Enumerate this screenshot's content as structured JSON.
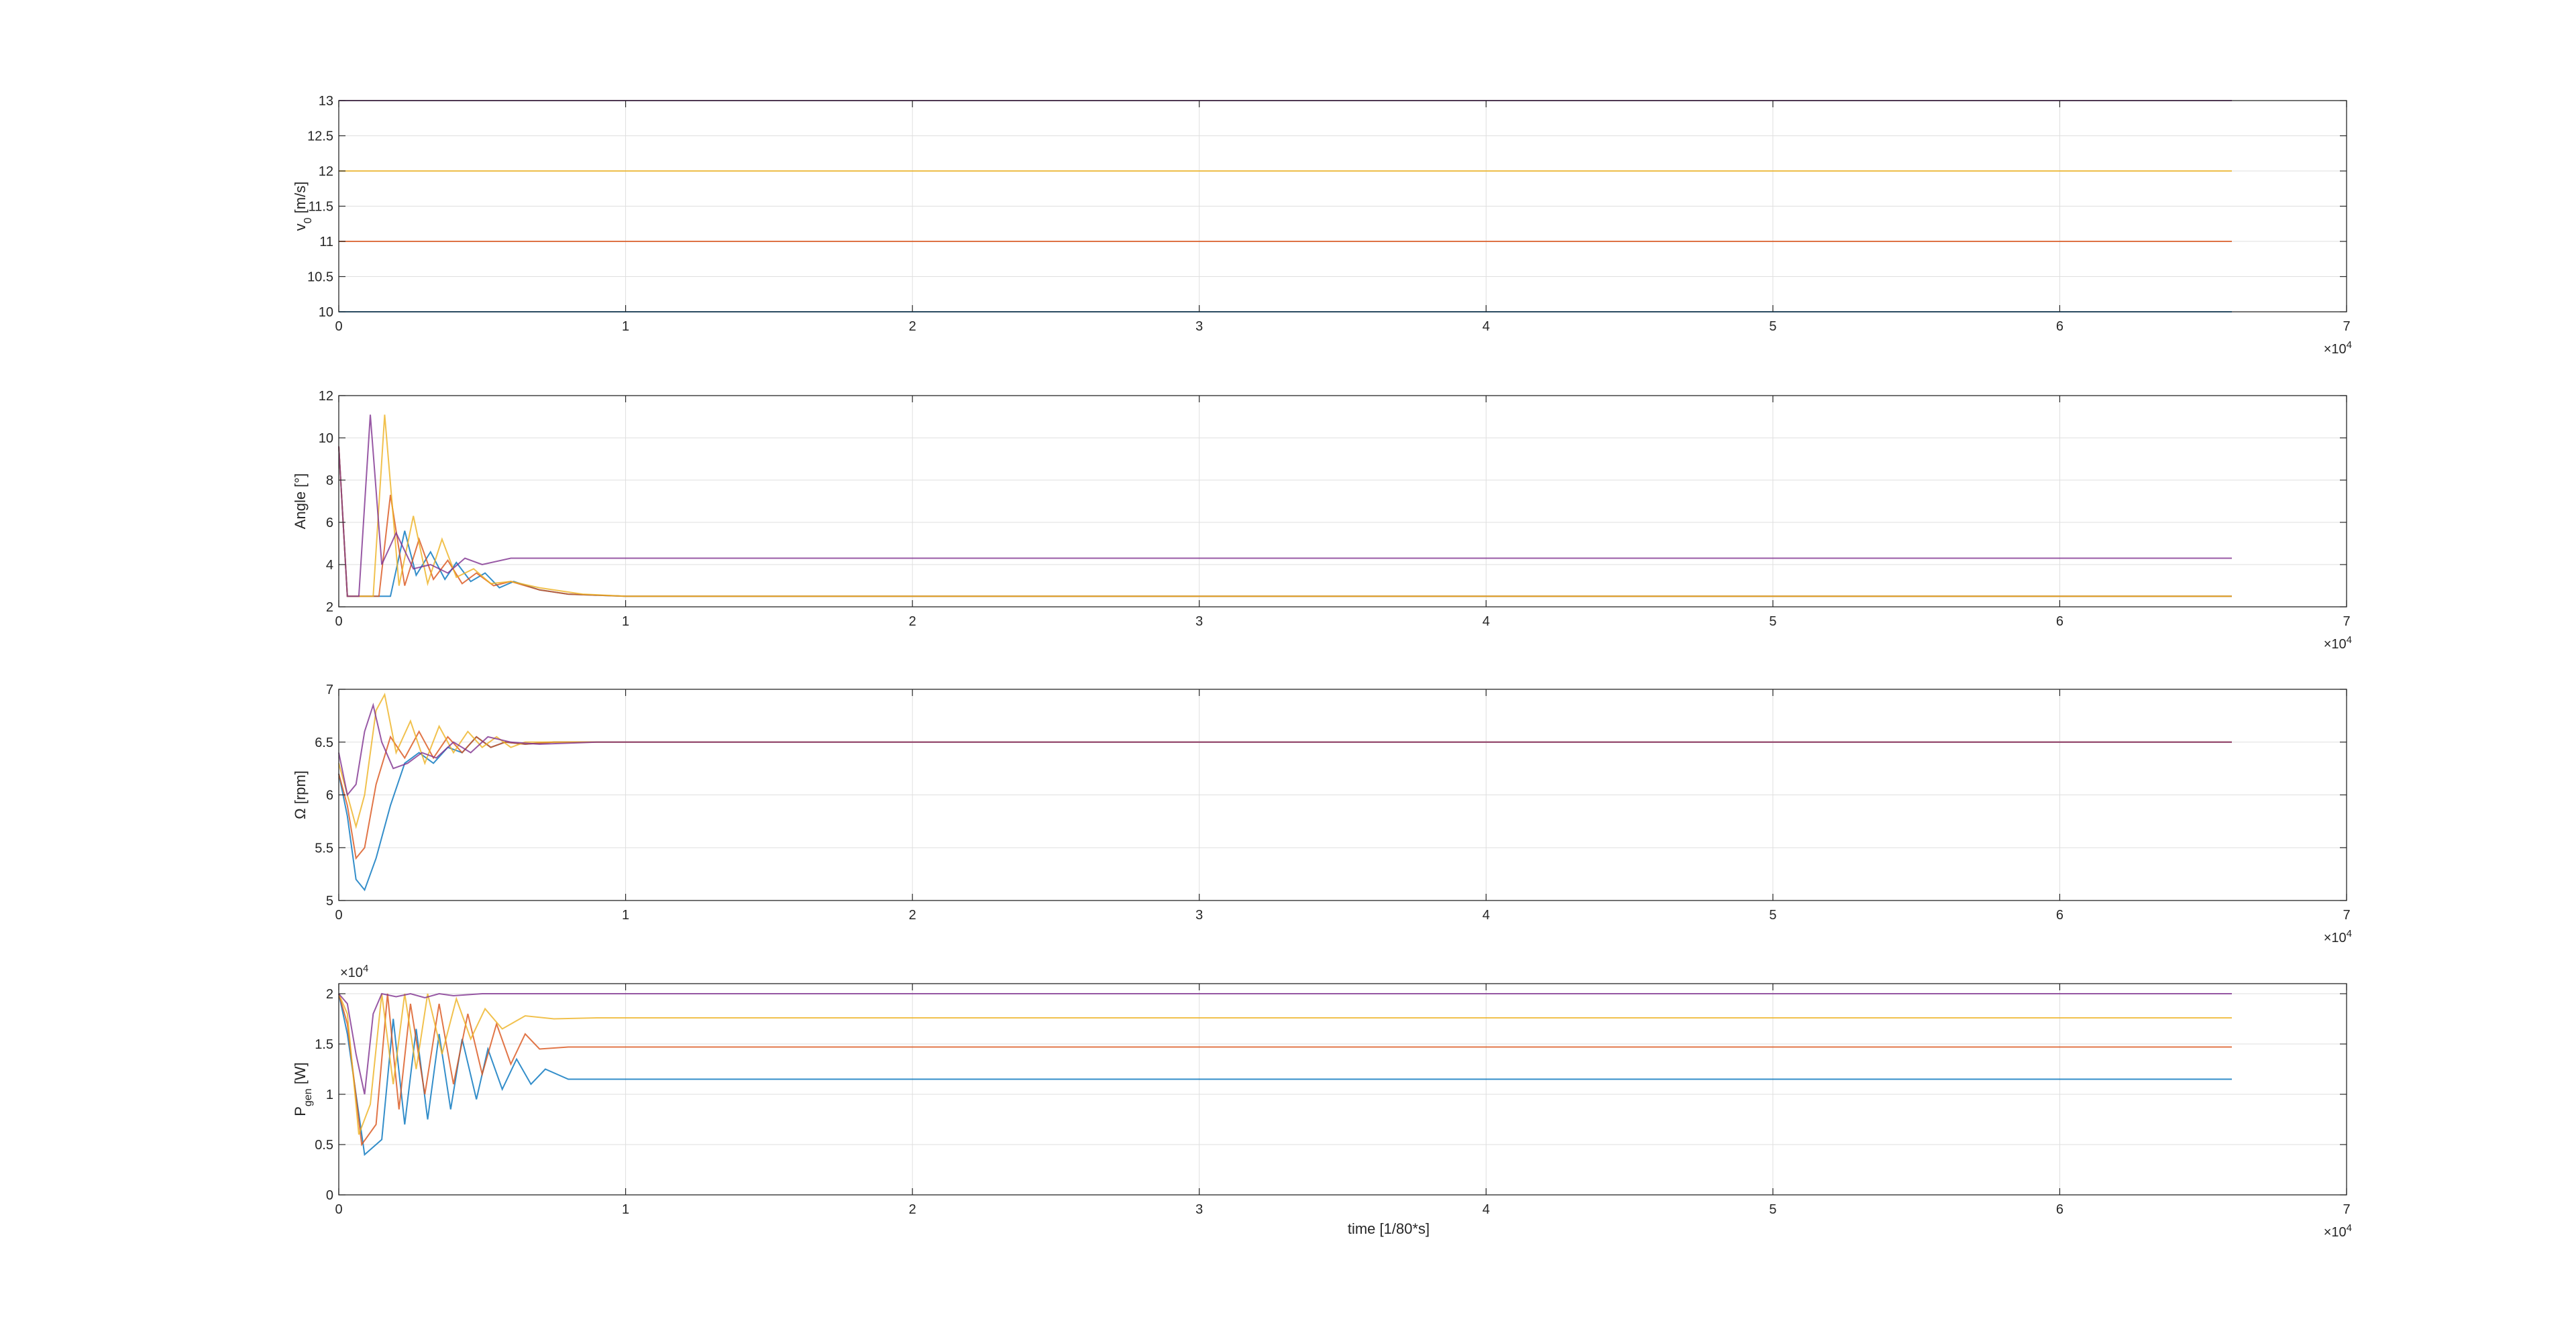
{
  "figure": {
    "xlabel": "time [1/80*s]"
  },
  "colors": {
    "s1": "#0072BD",
    "s2": "#D95319",
    "s3": "#EDB120",
    "s4": "#7E2F8E",
    "axis": "#262626",
    "grid": "#dfdfdf"
  },
  "chart_data": [
    {
      "type": "line",
      "ylabel": "v_0 [m/s]",
      "xlim": [
        0,
        70000
      ],
      "ylim": [
        10,
        13
      ],
      "xticks": [
        0,
        1,
        2,
        3,
        4,
        5,
        6,
        7
      ],
      "x_exponent": "4",
      "yticks": [
        "10",
        "10.5",
        "11",
        "11.5",
        "12",
        "12.5",
        "13"
      ],
      "grid": true,
      "series": [
        {
          "color": "#0072BD",
          "x": [
            0,
            66000
          ],
          "y": [
            10,
            10
          ]
        },
        {
          "color": "#D95319",
          "x": [
            0,
            66000
          ],
          "y": [
            11,
            11
          ]
        },
        {
          "color": "#EDB120",
          "x": [
            0,
            66000
          ],
          "y": [
            12,
            12
          ]
        },
        {
          "color": "#7E2F8E",
          "x": [
            0,
            66000
          ],
          "y": [
            13,
            13
          ]
        }
      ]
    },
    {
      "type": "line",
      "ylabel": "Angle [°]",
      "xlim": [
        0,
        70000
      ],
      "ylim": [
        2,
        12
      ],
      "xticks": [
        0,
        1,
        2,
        3,
        4,
        5,
        6,
        7
      ],
      "x_exponent": "4",
      "yticks": [
        "2",
        "4",
        "6",
        "8",
        "10",
        "12"
      ],
      "grid": true,
      "series": [
        {
          "color": "#0072BD",
          "x": [
            0,
            300,
            700,
            1200,
            1800,
            2300,
            2700,
            3200,
            3700,
            4100,
            4600,
            5100,
            5600,
            6100,
            7000,
            8000,
            10000,
            66000
          ],
          "y": [
            9.6,
            2.5,
            2.5,
            2.5,
            2.5,
            5.6,
            3.5,
            4.6,
            3.3,
            4.1,
            3.2,
            3.6,
            2.9,
            3.2,
            2.8,
            2.6,
            2.5,
            2.5
          ]
        },
        {
          "color": "#D95319",
          "x": [
            0,
            300,
            900,
            1400,
            1800,
            2300,
            2800,
            3300,
            3800,
            4300,
            4800,
            5400,
            6000,
            7000,
            8000,
            10000,
            66000
          ],
          "y": [
            9.6,
            2.5,
            2.5,
            2.5,
            7.3,
            3.0,
            5.2,
            3.3,
            4.2,
            3.1,
            3.6,
            3.0,
            3.2,
            2.8,
            2.6,
            2.5,
            2.5
          ]
        },
        {
          "color": "#EDB120",
          "x": [
            0,
            300,
            800,
            1200,
            1600,
            2100,
            2600,
            3100,
            3600,
            4100,
            4700,
            5300,
            6000,
            7000,
            8500,
            10000,
            66000
          ],
          "y": [
            9.6,
            2.5,
            2.5,
            2.5,
            11.1,
            3.0,
            6.3,
            3.1,
            5.2,
            3.4,
            3.8,
            3.1,
            3.2,
            2.9,
            2.6,
            2.5,
            2.5
          ]
        },
        {
          "color": "#7E2F8E",
          "x": [
            0,
            300,
            700,
            1100,
            1500,
            2000,
            2600,
            3200,
            3800,
            4400,
            5000,
            6000,
            66000
          ],
          "y": [
            9.6,
            2.5,
            2.5,
            11.1,
            4.0,
            5.5,
            3.8,
            4.0,
            3.6,
            4.3,
            4.0,
            4.3,
            4.3
          ]
        }
      ]
    },
    {
      "type": "line",
      "ylabel": "Ω [rpm]",
      "xlim": [
        0,
        70000
      ],
      "ylim": [
        5,
        7
      ],
      "xticks": [
        0,
        1,
        2,
        3,
        4,
        5,
        6,
        7
      ],
      "x_exponent": "4",
      "yticks": [
        "5",
        "5.5",
        "6",
        "6.5",
        "7"
      ],
      "grid": true,
      "series": [
        {
          "color": "#0072BD",
          "x": [
            0,
            300,
            600,
            900,
            1300,
            1800,
            2300,
            2800,
            3300,
            3800,
            4300,
            4800,
            5300,
            5800,
            6500,
            7500,
            9000,
            66000
          ],
          "y": [
            6.2,
            5.8,
            5.2,
            5.1,
            5.4,
            5.9,
            6.3,
            6.4,
            6.3,
            6.45,
            6.4,
            6.55,
            6.45,
            6.5,
            6.48,
            6.5,
            6.5,
            6.5
          ]
        },
        {
          "color": "#D95319",
          "x": [
            0,
            300,
            600,
            900,
            1300,
            1800,
            2300,
            2800,
            3300,
            3800,
            4300,
            4800,
            5300,
            5800,
            6500,
            7500,
            9000,
            66000
          ],
          "y": [
            6.2,
            5.9,
            5.4,
            5.5,
            6.1,
            6.55,
            6.35,
            6.6,
            6.35,
            6.55,
            6.4,
            6.55,
            6.45,
            6.5,
            6.48,
            6.5,
            6.5,
            6.5
          ]
        },
        {
          "color": "#EDB120",
          "x": [
            0,
            300,
            600,
            900,
            1300,
            1600,
            2000,
            2500,
            3000,
            3500,
            4000,
            4500,
            5000,
            5500,
            6000,
            6500,
            7500,
            9000,
            66000
          ],
          "y": [
            6.3,
            6.0,
            5.7,
            6.0,
            6.8,
            6.95,
            6.4,
            6.7,
            6.3,
            6.65,
            6.4,
            6.6,
            6.45,
            6.55,
            6.45,
            6.5,
            6.5,
            6.5,
            6.5
          ]
        },
        {
          "color": "#7E2F8E",
          "x": [
            0,
            300,
            600,
            900,
            1200,
            1500,
            1900,
            2400,
            2900,
            3400,
            4000,
            4600,
            5200,
            6000,
            7000,
            9000,
            66000
          ],
          "y": [
            6.4,
            6.0,
            6.1,
            6.6,
            6.85,
            6.5,
            6.25,
            6.3,
            6.4,
            6.35,
            6.5,
            6.4,
            6.55,
            6.5,
            6.48,
            6.5,
            6.5
          ]
        }
      ]
    },
    {
      "type": "line",
      "ylabel": "P_gen [W]",
      "xlim": [
        0,
        70000
      ],
      "ylim": [
        0,
        2.1
      ],
      "xticks": [
        0,
        1,
        2,
        3,
        4,
        5,
        6,
        7
      ],
      "x_exponent": "4",
      "y_exponent": "4",
      "yticks": [
        "0",
        "0.5",
        "1",
        "1.5",
        "2"
      ],
      "grid": true,
      "series": [
        {
          "color": "#0072BD",
          "x": [
            0,
            300,
            900,
            1500,
            1900,
            2300,
            2700,
            3100,
            3500,
            3900,
            4300,
            4800,
            5200,
            5700,
            6200,
            6700,
            7200,
            8000,
            9000,
            66000
          ],
          "y": [
            2.0,
            1.6,
            0.4,
            0.55,
            1.75,
            0.7,
            1.65,
            0.75,
            1.6,
            0.85,
            1.55,
            0.95,
            1.45,
            1.05,
            1.35,
            1.1,
            1.25,
            1.15,
            1.15,
            1.15
          ]
        },
        {
          "color": "#D95319",
          "x": [
            0,
            300,
            800,
            1300,
            1700,
            2100,
            2500,
            3000,
            3500,
            4000,
            4500,
            5000,
            5500,
            6000,
            6500,
            7000,
            8000,
            9000,
            66000
          ],
          "y": [
            2.0,
            1.7,
            0.5,
            0.7,
            2.0,
            0.85,
            1.9,
            1.0,
            1.9,
            1.1,
            1.8,
            1.2,
            1.7,
            1.3,
            1.6,
            1.45,
            1.47,
            1.47,
            1.47
          ]
        },
        {
          "color": "#EDB120",
          "x": [
            0,
            300,
            700,
            1100,
            1500,
            1900,
            2300,
            2700,
            3100,
            3600,
            4100,
            4600,
            5100,
            5700,
            6500,
            7500,
            9000,
            66000
          ],
          "y": [
            2.0,
            1.8,
            0.6,
            0.9,
            2.0,
            1.1,
            2.0,
            1.25,
            2.0,
            1.4,
            1.95,
            1.55,
            1.85,
            1.65,
            1.78,
            1.75,
            1.76,
            1.76
          ]
        },
        {
          "color": "#7E2F8E",
          "x": [
            0,
            300,
            600,
            900,
            1200,
            1500,
            2000,
            2500,
            3000,
            3500,
            4000,
            5000,
            6000,
            7000,
            66000
          ],
          "y": [
            2.0,
            1.9,
            1.4,
            1.0,
            1.8,
            2.0,
            1.97,
            2.0,
            1.96,
            2.0,
            1.98,
            2.0,
            2.0,
            2.0,
            2.0
          ]
        }
      ]
    }
  ]
}
